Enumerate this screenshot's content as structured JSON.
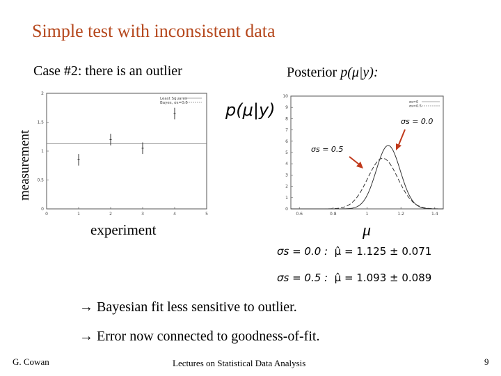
{
  "slide": {
    "title": "Simple test with inconsistent data",
    "case_label": "Case #2: there is an outlier",
    "posterior_prefix": "Posterior ",
    "posterior_expr": "p(μ|y):",
    "ylabel": "measurement",
    "xlabel": "experiment",
    "mu_label": "μ",
    "bullets": [
      "→ Bayesian fit less sensitive to outlier.",
      "→ Error now connected to goodness-of-fit."
    ],
    "footer_left": "G. Cowan",
    "footer_center": "Lectures on Statistical Data Analysis",
    "page_number": "9"
  },
  "results": [
    {
      "sigma": "σs = 0.0 :",
      "mu": "μ̂ = 1.125 ± 0.071"
    },
    {
      "sigma": "σs = 0.5 :",
      "mu": "μ̂ = 1.093 ± 0.089"
    }
  ],
  "chart_data": [
    {
      "type": "scatter",
      "xlim": [
        0,
        5
      ],
      "ylim": [
        0,
        2
      ],
      "x_ticks": [
        "0",
        "1",
        "2",
        "3",
        "4",
        "5"
      ],
      "y_ticks": [
        "0",
        "0.5",
        "1",
        "1.5",
        "2"
      ],
      "legend": [
        "Least Squares",
        "Bayes, σs=0.5"
      ],
      "points": [
        {
          "x": 1,
          "y": 0.85,
          "err": 0.1
        },
        {
          "x": 2,
          "y": 1.2,
          "err": 0.1
        },
        {
          "x": 3,
          "y": 1.05,
          "err": 0.1
        },
        {
          "x": 4,
          "y": 1.65,
          "err": 0.1
        }
      ],
      "fit_line": 1.125,
      "grid": false
    },
    {
      "type": "line",
      "ylabel": "p(μ|y)",
      "xlim": [
        0.55,
        1.45
      ],
      "ylim": [
        0,
        10
      ],
      "x_ticks": [
        "0.6",
        "0.8",
        "1",
        "1.2",
        "1.4"
      ],
      "y_ticks": [
        "0",
        "1",
        "2",
        "3",
        "4",
        "5",
        "6",
        "7",
        "8",
        "9",
        "10"
      ],
      "legend": [
        "σs=0",
        "σs=0.5"
      ],
      "annotations": [
        "σs = 0.0",
        "σs = 0.5"
      ],
      "series": [
        {
          "mean": 1.125,
          "sd": 0.071
        },
        {
          "mean": 1.093,
          "sd": 0.089
        }
      ]
    }
  ]
}
